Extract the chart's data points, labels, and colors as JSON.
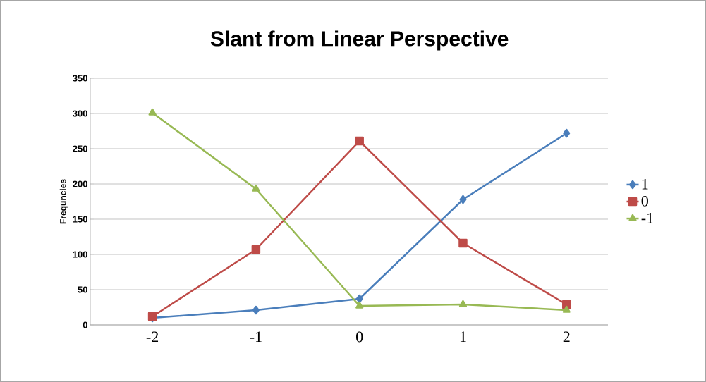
{
  "chart_data": {
    "type": "line",
    "title": "Slant from Linear Perspective",
    "ylabel": "Frequncies",
    "categories": [
      "-2",
      "-1",
      "0",
      "1",
      "2"
    ],
    "series": [
      {
        "name": "1",
        "color": "#4a7ebb",
        "marker": "diamond",
        "values": [
          10,
          21,
          37,
          178,
          272
        ]
      },
      {
        "name": "0",
        "color": "#be4b48",
        "marker": "square",
        "values": [
          12,
          107,
          261,
          116,
          29
        ]
      },
      {
        "name": "-1",
        "color": "#98b954",
        "marker": "triangle",
        "values": [
          301,
          193,
          27,
          29,
          21
        ]
      }
    ],
    "ylim": [
      0,
      350
    ],
    "yticks": [
      0,
      50,
      100,
      150,
      200,
      250,
      300,
      350
    ],
    "grid": "y",
    "legend": "right",
    "line_style": "solid"
  }
}
